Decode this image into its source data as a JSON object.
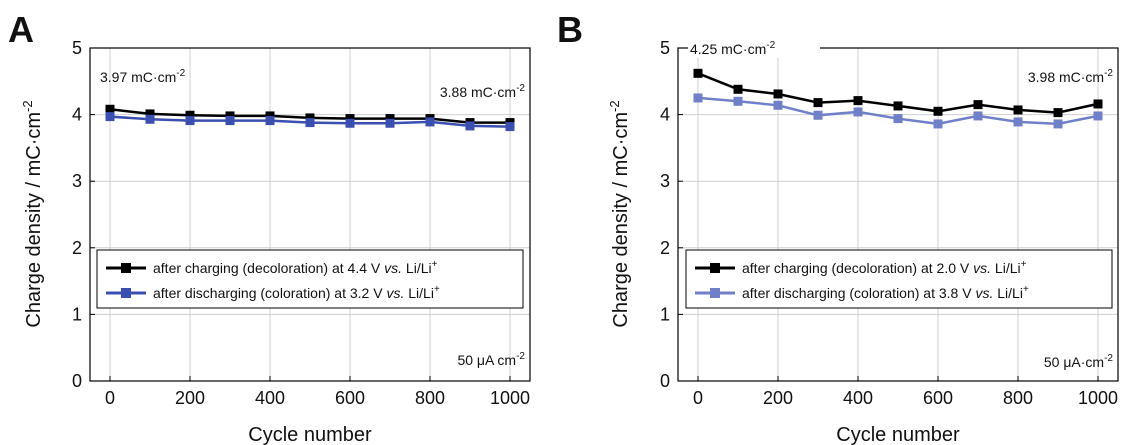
{
  "chart_data": [
    {
      "panel": "A",
      "type": "line",
      "xlabel": "Cycle number",
      "ylabel": "Charge density / mC·cm⁻²",
      "xlim": [
        -50,
        1050
      ],
      "ylim": [
        0,
        5
      ],
      "xticks": [
        0,
        200,
        400,
        600,
        800,
        1000
      ],
      "yticks": [
        0,
        1,
        2,
        3,
        4,
        5
      ],
      "grid": true,
      "x": [
        0,
        100,
        200,
        300,
        400,
        500,
        600,
        700,
        800,
        900,
        1000
      ],
      "series": [
        {
          "name": "after charging (decoloration) at 4.4 V vs. Li/Li⁺",
          "color": "#000000",
          "values": [
            4.08,
            4.01,
            3.99,
            3.98,
            3.98,
            3.95,
            3.94,
            3.94,
            3.94,
            3.88,
            3.88
          ]
        },
        {
          "name": "after discharging (coloration) at 3.2 V vs. Li/Li⁺",
          "color": "#3a4fb0",
          "values": [
            3.97,
            3.93,
            3.91,
            3.91,
            3.91,
            3.88,
            3.87,
            3.87,
            3.89,
            3.83,
            3.82
          ]
        }
      ],
      "legend_position": "center-left",
      "legend": [
        {
          "pre": "after charging (decoloration) at 4.4 V ",
          "vs": "vs.",
          "post": " Li/Li",
          "sup": "+"
        },
        {
          "pre": "after discharging (coloration) at 3.2 V ",
          "vs": "vs.",
          "post": " Li/Li",
          "sup": "+"
        }
      ],
      "annotations": {
        "left": {
          "value": "3.97 mC·cm",
          "sup": "-2"
        },
        "right": {
          "value": "3.88 mC·cm",
          "sup": "-2"
        },
        "current": {
          "value": "50 μA cm",
          "sup": "-2"
        }
      }
    },
    {
      "panel": "B",
      "type": "line",
      "xlabel": "Cycle number",
      "ylabel": "Charge density / mC·cm⁻²",
      "xlim": [
        -50,
        1050
      ],
      "ylim": [
        0,
        5
      ],
      "xticks": [
        0,
        200,
        400,
        600,
        800,
        1000
      ],
      "yticks": [
        0,
        1,
        2,
        3,
        4,
        5
      ],
      "grid": true,
      "x": [
        0,
        100,
        200,
        300,
        400,
        500,
        600,
        700,
        800,
        900,
        1000
      ],
      "series": [
        {
          "name": "after charging (decoloration) at 2.0 V vs. Li/Li⁺",
          "color": "#000000",
          "values": [
            4.62,
            4.38,
            4.31,
            4.18,
            4.21,
            4.13,
            4.05,
            4.15,
            4.07,
            4.03,
            4.16
          ]
        },
        {
          "name": "after discharging (coloration) at 3.8 V vs. Li/Li⁺",
          "color": "#6f80c8",
          "values": [
            4.25,
            4.2,
            4.14,
            3.99,
            4.04,
            3.94,
            3.86,
            3.98,
            3.89,
            3.86,
            3.98
          ]
        }
      ],
      "legend_position": "center-left",
      "legend": [
        {
          "pre": "after charging (decoloration) at 2.0 V ",
          "vs": "vs.",
          "post": " Li/Li",
          "sup": "+"
        },
        {
          "pre": "after discharging (coloration) at 3.8 V ",
          "vs": "vs.",
          "post": " Li/Li",
          "sup": "+"
        }
      ],
      "annotations": {
        "left": {
          "value": "4.25 mC·cm",
          "sup": "-2"
        },
        "right": {
          "value": "3.98 mC·cm",
          "sup": "-2"
        },
        "current": {
          "value": "50 μA·cm",
          "sup": "-2"
        }
      }
    }
  ]
}
